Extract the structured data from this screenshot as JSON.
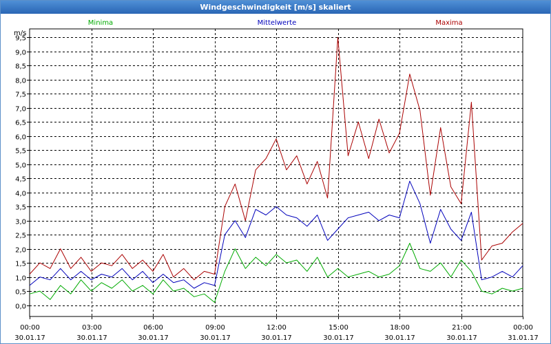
{
  "window": {
    "title": "Windgeschwindigkeit [m/s] skaliert"
  },
  "colors": {
    "min": "#00aa00",
    "mean": "#0000bb",
    "max": "#aa0000",
    "grid": "#000000"
  },
  "chart_data": {
    "type": "line",
    "title": "Windgeschwindigkeit [m/s] skaliert",
    "ylabel": "m/s",
    "ylim": [
      -0.4,
      9.8
    ],
    "xlim": [
      0,
      24
    ],
    "yticks": [
      0,
      0.5,
      1,
      1.5,
      2,
      2.5,
      3,
      3.5,
      4,
      4.5,
      5,
      5.5,
      6,
      6.5,
      7,
      7.5,
      8,
      8.5,
      9,
      9.5
    ],
    "ytick_labels": [
      "0,0",
      "0,5",
      "1,0",
      "1,5",
      "2,0",
      "2,5",
      "3,0",
      "3,5",
      "4,0",
      "4,5",
      "5,0",
      "5,5",
      "6,0",
      "6,5",
      "7,0",
      "7,5",
      "8,0",
      "8,5",
      "9,0",
      "9,5"
    ],
    "xticks": [
      0,
      3,
      6,
      9,
      12,
      15,
      18,
      21,
      24
    ],
    "xtick_times": [
      "00:00",
      "03:00",
      "06:00",
      "09:00",
      "12:00",
      "15:00",
      "18:00",
      "21:00",
      "00:00"
    ],
    "xtick_dates": [
      "30.01.17",
      "30.01.17",
      "30.01.17",
      "30.01.17",
      "30.01.17",
      "30.01.17",
      "30.01.17",
      "30.01.17",
      "31.01.17"
    ],
    "series": [
      {
        "name": "Minima",
        "key": "min",
        "x": [
          0,
          0.5,
          1,
          1.5,
          2,
          2.5,
          3,
          3.5,
          4,
          4.5,
          5,
          5.5,
          6,
          6.5,
          7,
          7.5,
          8,
          8.5,
          9,
          9.5,
          10,
          10.5,
          11,
          11.5,
          12,
          12.5,
          13,
          13.5,
          14,
          14.5,
          15,
          15.5,
          16,
          16.5,
          17,
          17.5,
          18,
          18.5,
          19,
          19.5,
          20,
          20.5,
          21,
          21.5,
          22,
          22.5,
          23,
          23.5,
          24
        ],
        "values": [
          0.4,
          0.5,
          0.2,
          0.7,
          0.4,
          0.9,
          0.5,
          0.8,
          0.6,
          0.9,
          0.5,
          0.7,
          0.4,
          0.9,
          0.5,
          0.6,
          0.3,
          0.4,
          0.1,
          1.2,
          2.0,
          1.3,
          1.7,
          1.4,
          1.8,
          1.5,
          1.6,
          1.2,
          1.7,
          1.0,
          1.3,
          1.0,
          1.1,
          1.2,
          1.0,
          1.1,
          1.4,
          2.2,
          1.3,
          1.2,
          1.5,
          1.0,
          1.6,
          1.2,
          0.5,
          0.4,
          0.6,
          0.5,
          0.6
        ]
      },
      {
        "name": "Mittelwerte",
        "key": "mean",
        "x": [
          0,
          0.5,
          1,
          1.5,
          2,
          2.5,
          3,
          3.5,
          4,
          4.5,
          5,
          5.5,
          6,
          6.5,
          7,
          7.5,
          8,
          8.5,
          9,
          9.5,
          10,
          10.5,
          11,
          11.5,
          12,
          12.5,
          13,
          13.5,
          14,
          14.5,
          15,
          15.5,
          16,
          16.5,
          17,
          17.5,
          18,
          18.5,
          19,
          19.5,
          20,
          20.5,
          21,
          21.5,
          22,
          22.5,
          23,
          23.5,
          24
        ],
        "values": [
          0.7,
          1.0,
          0.9,
          1.3,
          0.9,
          1.2,
          0.9,
          1.1,
          1.0,
          1.3,
          0.9,
          1.2,
          0.8,
          1.1,
          0.8,
          0.9,
          0.6,
          0.8,
          0.7,
          2.5,
          3.0,
          2.4,
          3.4,
          3.2,
          3.5,
          3.2,
          3.1,
          2.8,
          3.2,
          2.3,
          2.7,
          3.1,
          3.2,
          3.3,
          3.0,
          3.2,
          3.1,
          4.4,
          3.6,
          2.2,
          3.4,
          2.7,
          2.3,
          3.3,
          0.9,
          1.0,
          1.2,
          1.0,
          1.4
        ]
      },
      {
        "name": "Maxima",
        "key": "max",
        "x": [
          0,
          0.5,
          1,
          1.5,
          2,
          2.5,
          3,
          3.5,
          4,
          4.5,
          5,
          5.5,
          6,
          6.5,
          7,
          7.5,
          8,
          8.5,
          9,
          9.5,
          10,
          10.5,
          11,
          11.5,
          12,
          12.5,
          13,
          13.5,
          14,
          14.5,
          15,
          15.5,
          16,
          16.5,
          17,
          17.5,
          18,
          18.5,
          19,
          19.5,
          20,
          20.5,
          21,
          21.5,
          22,
          22.5,
          23,
          23.5,
          24
        ],
        "values": [
          1.1,
          1.5,
          1.3,
          2.0,
          1.3,
          1.7,
          1.2,
          1.5,
          1.4,
          1.8,
          1.3,
          1.6,
          1.2,
          1.8,
          1.0,
          1.3,
          0.9,
          1.2,
          1.1,
          3.5,
          4.3,
          3.0,
          4.8,
          5.2,
          5.9,
          4.8,
          5.3,
          4.3,
          5.1,
          3.8,
          9.5,
          5.3,
          6.5,
          5.2,
          6.6,
          5.4,
          6.1,
          8.2,
          6.9,
          3.9,
          6.3,
          4.2,
          3.6,
          7.2,
          1.6,
          2.1,
          2.2,
          2.6,
          2.9
        ]
      }
    ]
  }
}
